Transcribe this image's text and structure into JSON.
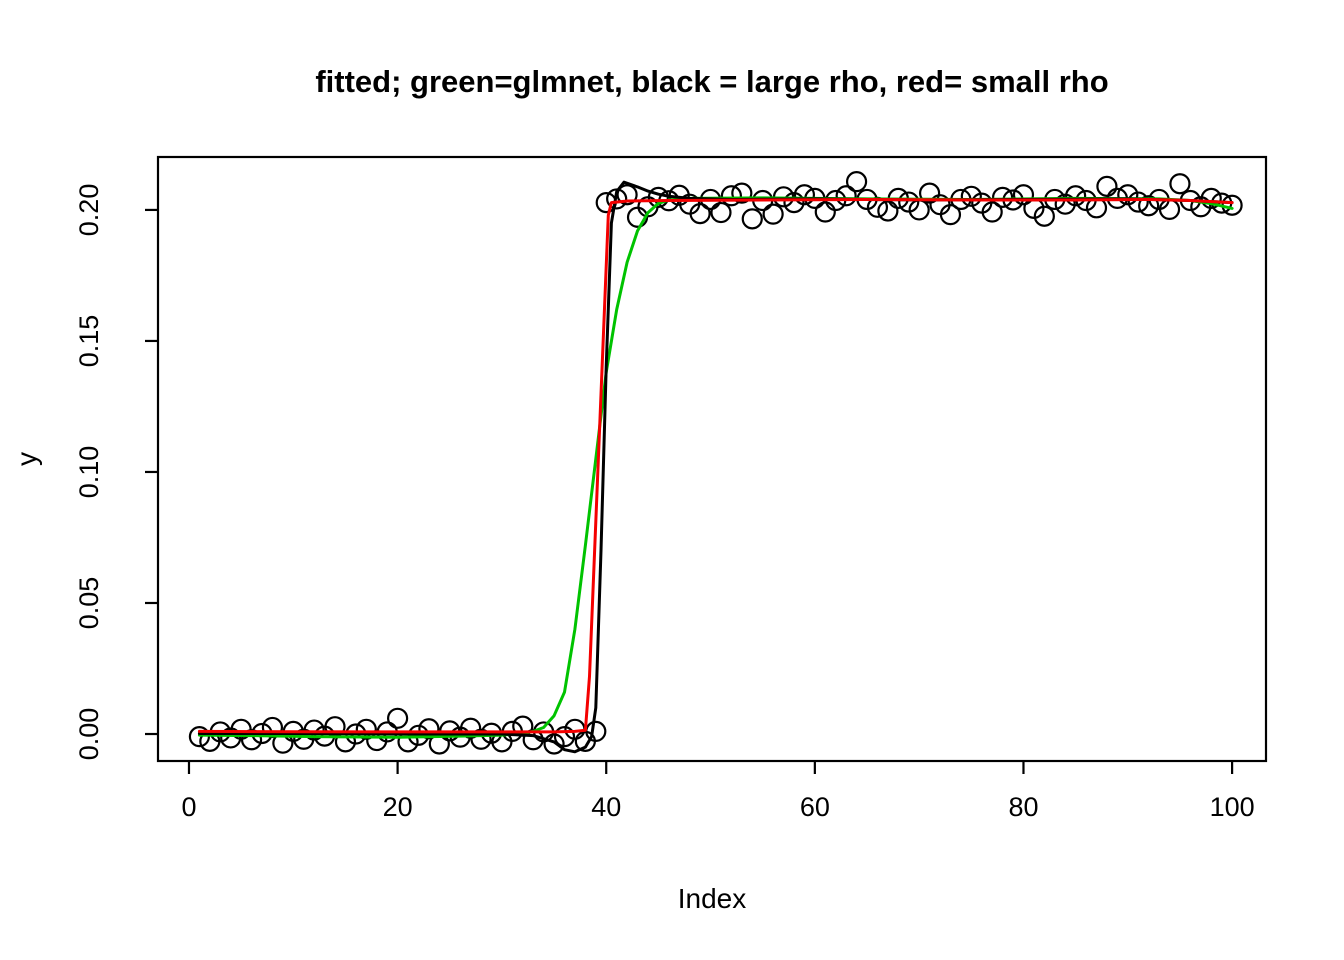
{
  "page": {
    "background": "#ffffff",
    "foreground": "#000000"
  },
  "chart_data": {
    "type": "scatter",
    "title": "fitted; green=glmnet, black = large rho, red= small rho",
    "xlabel": "Index",
    "ylabel": "y",
    "xlim": [
      -2.97,
      103.25
    ],
    "ylim": [
      -0.0103,
      0.2202
    ],
    "grid": false,
    "legend_position": "none (encoded in title)",
    "marker": {
      "shape": "open-circle",
      "color": "#000000"
    },
    "x_ticks": [
      {
        "v": 0,
        "label": "0"
      },
      {
        "v": 20,
        "label": "20"
      },
      {
        "v": 40,
        "label": "40"
      },
      {
        "v": 60,
        "label": "60"
      },
      {
        "v": 80,
        "label": "80"
      },
      {
        "v": 100,
        "label": "100"
      }
    ],
    "y_ticks": [
      {
        "v": 0.0,
        "label": "0.00"
      },
      {
        "v": 0.05,
        "label": "0.05"
      },
      {
        "v": 0.1,
        "label": "0.10"
      },
      {
        "v": 0.15,
        "label": "0.15"
      },
      {
        "v": 0.2,
        "label": "0.20"
      }
    ],
    "points": {
      "x_start": 1,
      "y_values": [
        -0.001,
        -0.0028,
        0.0008,
        -0.0015,
        0.0018,
        -0.0022,
        0.0002,
        0.0025,
        -0.0035,
        0.001,
        -0.002,
        0.0015,
        -0.0008,
        0.0028,
        -0.003,
        0.0,
        0.0018,
        -0.0025,
        0.0008,
        0.006,
        -0.003,
        -0.0005,
        0.002,
        -0.0038,
        0.0012,
        -0.0012,
        0.0022,
        -0.002,
        0.0003,
        -0.003,
        0.001,
        0.003,
        -0.0022,
        0.0008,
        -0.0038,
        -0.001,
        0.0018,
        -0.0028,
        0.001,
        0.2028,
        0.2042,
        0.2058,
        0.1972,
        0.2012,
        0.2048,
        0.2035,
        0.2056,
        0.2022,
        0.1986,
        0.204,
        0.199,
        0.2054,
        0.2064,
        0.1966,
        0.2036,
        0.1984,
        0.205,
        0.2028,
        0.2058,
        0.2044,
        0.1992,
        0.2036,
        0.2054,
        0.2108,
        0.204,
        0.201,
        0.1996,
        0.2044,
        0.203,
        0.2,
        0.2064,
        0.202,
        0.1982,
        0.204,
        0.2052,
        0.2026,
        0.1992,
        0.2048,
        0.2038,
        0.2058,
        0.2006,
        0.1976,
        0.204,
        0.2022,
        0.2054,
        0.2036,
        0.2008,
        0.209,
        0.2044,
        0.2058,
        0.203,
        0.2016,
        0.204,
        0.2002,
        0.21,
        0.2036,
        0.2012,
        0.2044,
        0.2026,
        0.2018
      ]
    },
    "series": [
      {
        "name": "glmnet",
        "color": "#00C300",
        "points": [
          [
            1,
            -0.0004
          ],
          [
            6,
            -0.0006
          ],
          [
            12,
            -0.001
          ],
          [
            20,
            -0.0012
          ],
          [
            26,
            -0.0008
          ],
          [
            30,
            -0.0004
          ],
          [
            32,
            0.0002
          ],
          [
            33,
            0.001
          ],
          [
            34,
            0.0025
          ],
          [
            35,
            0.007
          ],
          [
            36,
            0.016
          ],
          [
            37,
            0.04
          ],
          [
            38,
            0.072
          ],
          [
            39,
            0.105
          ],
          [
            40,
            0.138
          ],
          [
            41,
            0.162
          ],
          [
            42,
            0.18
          ],
          [
            43,
            0.192
          ],
          [
            44,
            0.199
          ],
          [
            45,
            0.2025
          ],
          [
            46,
            0.2038
          ],
          [
            48,
            0.2044
          ],
          [
            55,
            0.2046
          ],
          [
            65,
            0.2042
          ],
          [
            75,
            0.204
          ],
          [
            85,
            0.2044
          ],
          [
            93,
            0.2042
          ],
          [
            96,
            0.2036
          ],
          [
            98,
            0.2024
          ],
          [
            100,
            0.2006
          ]
        ]
      },
      {
        "name": "large rho",
        "color": "#000000",
        "points": [
          [
            1,
            0.0002
          ],
          [
            10,
            0.0002
          ],
          [
            20,
            0.0
          ],
          [
            30,
            0.0
          ],
          [
            33,
            -0.0006
          ],
          [
            35,
            -0.003
          ],
          [
            36,
            -0.006
          ],
          [
            37,
            -0.0068
          ],
          [
            38,
            -0.005
          ],
          [
            38.6,
            -0.001
          ],
          [
            39,
            0.01
          ],
          [
            39.5,
            0.07
          ],
          [
            40,
            0.14
          ],
          [
            40.5,
            0.195
          ],
          [
            41,
            0.207
          ],
          [
            41.7,
            0.2106
          ],
          [
            43,
            0.2088
          ],
          [
            44,
            0.2072
          ],
          [
            45,
            0.206
          ],
          [
            46,
            0.2052
          ],
          [
            48,
            0.2044
          ],
          [
            52,
            0.204
          ],
          [
            60,
            0.2042
          ],
          [
            70,
            0.2038
          ],
          [
            80,
            0.204
          ],
          [
            90,
            0.2042
          ],
          [
            96,
            0.2036
          ],
          [
            100,
            0.2028
          ]
        ]
      },
      {
        "name": "small rho",
        "color": "#F40000",
        "points": [
          [
            1,
            0.001
          ],
          [
            10,
            0.0009
          ],
          [
            20,
            0.0008
          ],
          [
            30,
            0.0008
          ],
          [
            35,
            0.0008
          ],
          [
            37,
            0.001
          ],
          [
            38,
            0.0014
          ],
          [
            38.4,
            0.022
          ],
          [
            39.6,
            0.14
          ],
          [
            40.2,
            0.198
          ],
          [
            40.5,
            0.2028
          ],
          [
            42,
            0.2034
          ],
          [
            46,
            0.2036
          ],
          [
            55,
            0.2038
          ],
          [
            65,
            0.204
          ],
          [
            75,
            0.2038
          ],
          [
            85,
            0.2038
          ],
          [
            92,
            0.204
          ],
          [
            96,
            0.2036
          ],
          [
            100,
            0.2028
          ]
        ]
      }
    ]
  }
}
